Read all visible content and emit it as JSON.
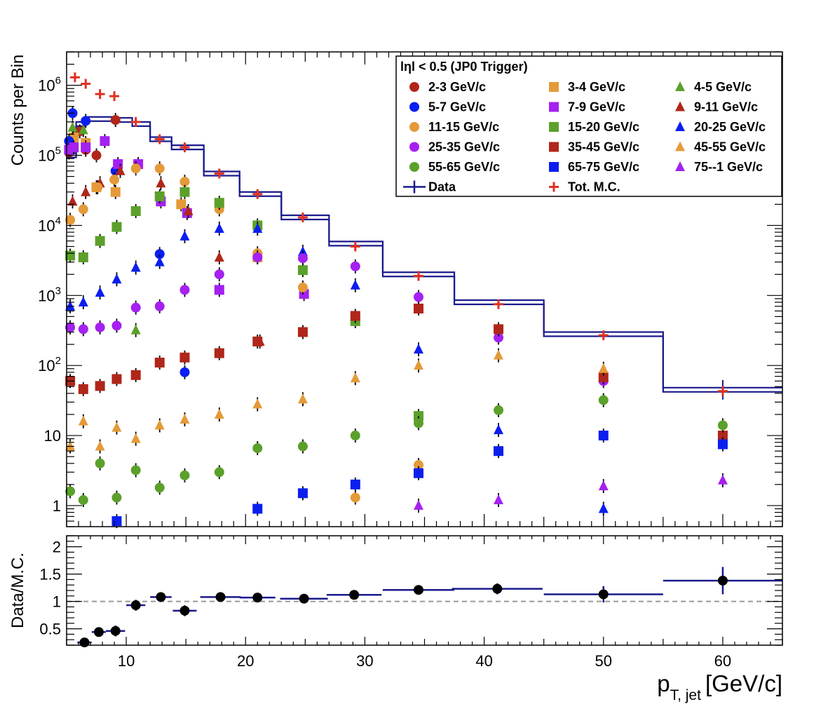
{
  "chart_data": [
    {
      "type": "scatter",
      "ylabel": "Counts per Bin",
      "yscale": "log",
      "ylim": [
        0.5,
        3000000
      ],
      "xlim": [
        5,
        65
      ],
      "y_tick_labels": [
        "1",
        "10",
        "10^2",
        "10^3",
        "10^4",
        "10^5",
        "10^6"
      ],
      "legend": {
        "title": "lηl < 0.5 (JP0 Trigger)",
        "placement": "top-right",
        "entries": [
          {
            "label": "2-3 GeV/c",
            "color": "#b0261a",
            "marker": "circle"
          },
          {
            "label": "3-4 GeV/c",
            "color": "#e49a38",
            "marker": "square"
          },
          {
            "label": "4-5 GeV/c",
            "color": "#5ba02a",
            "marker": "triangle"
          },
          {
            "label": "5-7 GeV/c",
            "color": "#0b1ef0",
            "marker": "circle"
          },
          {
            "label": "7-9 GeV/c",
            "color": "#a421f0",
            "marker": "square"
          },
          {
            "label": "9-11 GeV/c",
            "color": "#b0261a",
            "marker": "triangle"
          },
          {
            "label": "11-15 GeV/c",
            "color": "#e49a38",
            "marker": "circle"
          },
          {
            "label": "15-20 GeV/c",
            "color": "#5ba02a",
            "marker": "square"
          },
          {
            "label": "20-25 GeV/c",
            "color": "#0b1ef0",
            "marker": "triangle"
          },
          {
            "label": "25-35 GeV/c",
            "color": "#a421f0",
            "marker": "circle"
          },
          {
            "label": "35-45 GeV/c",
            "color": "#b0261a",
            "marker": "square"
          },
          {
            "label": "45-55 GeV/c",
            "color": "#e49a38",
            "marker": "triangle"
          },
          {
            "label": "55-65 GeV/c",
            "color": "#5ba02a",
            "marker": "circle"
          },
          {
            "label": "65-75 GeV/c",
            "color": "#0b1ef0",
            "marker": "square"
          },
          {
            "label": "75--1 GeV/c",
            "color": "#a421f0",
            "marker": "triangle"
          },
          {
            "label": "Data",
            "color": "#1a1a8c",
            "marker": "line"
          },
          {
            "label": "Tot. M.C.",
            "color": "#e03020",
            "marker": "cross"
          }
        ]
      },
      "data_histogram": {
        "name": "Data",
        "bin_edges": [
          5,
          5.8,
          6.6,
          7.2,
          8.8,
          10.5,
          12,
          13.8,
          16.5,
          19.5,
          23,
          27,
          31.5,
          37.5,
          45,
          55,
          65
        ],
        "values": [
          100000,
          280000,
          330000,
          330000,
          320000,
          280000,
          170000,
          130000,
          55000,
          28000,
          13000,
          5500,
          2000,
          800,
          280,
          45
        ]
      },
      "mc_total": {
        "name": "Tot. M.C.",
        "x": [
          5.7,
          6.6,
          7.8,
          9.0,
          10.8,
          12.8,
          14.9,
          17.8,
          21.0,
          24.8,
          29.2,
          34.5,
          41.2,
          50.0,
          60.0
        ],
        "y": [
          1300000,
          1050000,
          750000,
          700000,
          300000,
          170000,
          130000,
          55000,
          28000,
          13000,
          5000,
          1900,
          750,
          270,
          43
        ]
      },
      "series": [
        {
          "name": "2-3 GeV/c",
          "x": [
            5.2,
            5.6,
            6.1,
            6.6,
            7.5,
            9.1
          ],
          "y": [
            110000,
            140000,
            220000,
            120000,
            100000,
            320000
          ]
        },
        {
          "name": "3-4 GeV/c",
          "x": [
            5.6,
            6.6,
            7.5,
            9.1,
            14.6,
            21.0
          ],
          "y": [
            180000,
            150000,
            35000,
            30000,
            20000,
            3500
          ]
        },
        {
          "name": "4-5 GeV/c",
          "x": [
            5.5,
            6.4,
            10.8
          ],
          "y": [
            250000,
            230000,
            320
          ]
        },
        {
          "name": "5-7 GeV/c",
          "x": [
            5.2,
            5.5,
            6.6,
            9.1,
            12.8,
            14.9
          ],
          "y": [
            160000,
            400000,
            310000,
            60000,
            3900,
            80
          ]
        },
        {
          "name": "7-9 GeV/c",
          "x": [
            5.2,
            5.6,
            6.6,
            8.2,
            9.3,
            11.0,
            12.9,
            15.1,
            17.8,
            24.9
          ],
          "y": [
            120000,
            130000,
            130000,
            160000,
            75000,
            75000,
            22000,
            15000,
            1200,
            1050
          ]
        },
        {
          "name": "9-11 GeV/c",
          "x": [
            5.5,
            6.6,
            7.8,
            9.5,
            12.9,
            15.2,
            17.8,
            21.2
          ],
          "y": [
            22000,
            30000,
            40000,
            60000,
            40000,
            16000,
            3500,
            220
          ]
        },
        {
          "name": "11-15 GeV/c",
          "x": [
            5.3,
            6.4,
            7.6,
            9.0,
            10.8,
            12.8,
            14.9,
            17.8,
            21.0,
            24.8,
            29.2,
            34.5
          ],
          "y": [
            12000,
            17000,
            35000,
            45000,
            65000,
            65000,
            42000,
            17000,
            4000,
            1300,
            1.3,
            3.8
          ]
        },
        {
          "name": "15-20 GeV/c",
          "x": [
            5.3,
            6.4,
            7.8,
            9.2,
            10.8,
            12.8,
            14.9,
            17.8,
            21.0,
            24.8,
            29.2,
            34.5
          ],
          "y": [
            3700,
            3500,
            6000,
            9500,
            16000,
            26000,
            30000,
            21000,
            10000,
            2300,
            430,
            19
          ]
        },
        {
          "name": "20-25 GeV/c",
          "x": [
            5.3,
            6.4,
            7.8,
            9.2,
            10.8,
            12.8,
            14.9,
            17.8,
            21.0,
            24.8,
            29.2,
            34.5,
            41.2,
            50.0
          ],
          "y": [
            700,
            800,
            1100,
            1700,
            2500,
            3000,
            7000,
            9000,
            9000,
            4200,
            1400,
            170,
            12,
            0.9
          ]
        },
        {
          "name": "25-35 GeV/c",
          "x": [
            5.3,
            6.4,
            7.8,
            9.2,
            10.8,
            12.8,
            14.9,
            17.8,
            21.0,
            24.8,
            29.2,
            34.5,
            41.2,
            50.0
          ],
          "y": [
            350,
            330,
            350,
            370,
            670,
            700,
            1200,
            2000,
            3500,
            3400,
            2600,
            950,
            250,
            60
          ]
        },
        {
          "name": "35-45 GeV/c",
          "x": [
            5.3,
            6.4,
            7.8,
            9.2,
            10.8,
            12.8,
            14.9,
            17.8,
            21.0,
            24.8,
            29.2,
            34.5,
            41.2,
            50.0,
            60.0
          ],
          "y": [
            60,
            46,
            51,
            64,
            73,
            110,
            130,
            150,
            220,
            300,
            510,
            650,
            330,
            68,
            10
          ]
        },
        {
          "name": "45-55 GeV/c",
          "x": [
            5.3,
            6.4,
            7.8,
            9.2,
            10.8,
            12.8,
            14.9,
            17.8,
            21.0,
            24.8,
            29.2,
            34.5,
            41.2,
            50.0
          ],
          "y": [
            7,
            16,
            7,
            13,
            9,
            14,
            17,
            20,
            28,
            33,
            66,
            100,
            140,
            90
          ]
        },
        {
          "name": "55-65 GeV/c",
          "x": [
            5.3,
            6.4,
            7.8,
            9.2,
            10.8,
            12.8,
            14.9,
            17.8,
            21.0,
            24.8,
            29.2,
            34.5,
            41.2,
            50.0,
            60.0
          ],
          "y": [
            1.6,
            1.2,
            4,
            1.3,
            3.2,
            1.8,
            2.7,
            3.0,
            6.6,
            7.0,
            10,
            15,
            23,
            32,
            14
          ]
        },
        {
          "name": "65-75 GeV/c",
          "x": [
            9.2,
            21.0,
            24.8,
            29.2,
            34.5,
            41.2,
            50.0,
            60.0
          ],
          "y": [
            0.6,
            0.9,
            1.5,
            2.0,
            2.9,
            6,
            10,
            7.5
          ]
        },
        {
          "name": "75--1 GeV/c",
          "x": [
            34.5,
            41.2,
            50.0,
            60.0
          ],
          "y": [
            1.0,
            1.2,
            1.9,
            2.3
          ]
        }
      ]
    },
    {
      "type": "scatter",
      "ylabel": "Data/M.C.",
      "xlabel_main": "p",
      "xlabel_sub": "T, jet",
      "xlabel_unit": "[GeV/c]",
      "xlim": [
        5,
        65
      ],
      "ylim": [
        0.2,
        2.2
      ],
      "x_tick_labels": [
        "10",
        "20",
        "30",
        "40",
        "50",
        "60"
      ],
      "y_tick_labels": [
        "0.5",
        "1",
        "1.5",
        "2"
      ],
      "reference_line": 1,
      "ratio": {
        "x": [
          6.5,
          7.7,
          9.1,
          10.8,
          12.9,
          14.9,
          17.9,
          21.0,
          24.9,
          29.1,
          34.5,
          41.1,
          50.0,
          60.0
        ],
        "y": [
          0.25,
          0.44,
          0.46,
          0.93,
          1.08,
          0.83,
          1.08,
          1.07,
          1.05,
          1.12,
          1.21,
          1.23,
          1.13,
          1.38
        ],
        "xerr_low": [
          0.6,
          0.6,
          0.8,
          0.8,
          0.9,
          1.0,
          1.7,
          1.5,
          2.0,
          2.3,
          3.0,
          3.8,
          5.0,
          5.0
        ],
        "xerr_high": [
          0.6,
          0.6,
          0.8,
          0.8,
          0.9,
          1.0,
          1.7,
          1.5,
          2.0,
          2.3,
          3.0,
          3.8,
          5.0,
          5.0
        ],
        "yerr": [
          0.04,
          0.04,
          0.1,
          0.1,
          0.05,
          0.1,
          0.04,
          0.04,
          0.07,
          0.05,
          0.05,
          0.1,
          0.15,
          0.25
        ]
      }
    }
  ]
}
